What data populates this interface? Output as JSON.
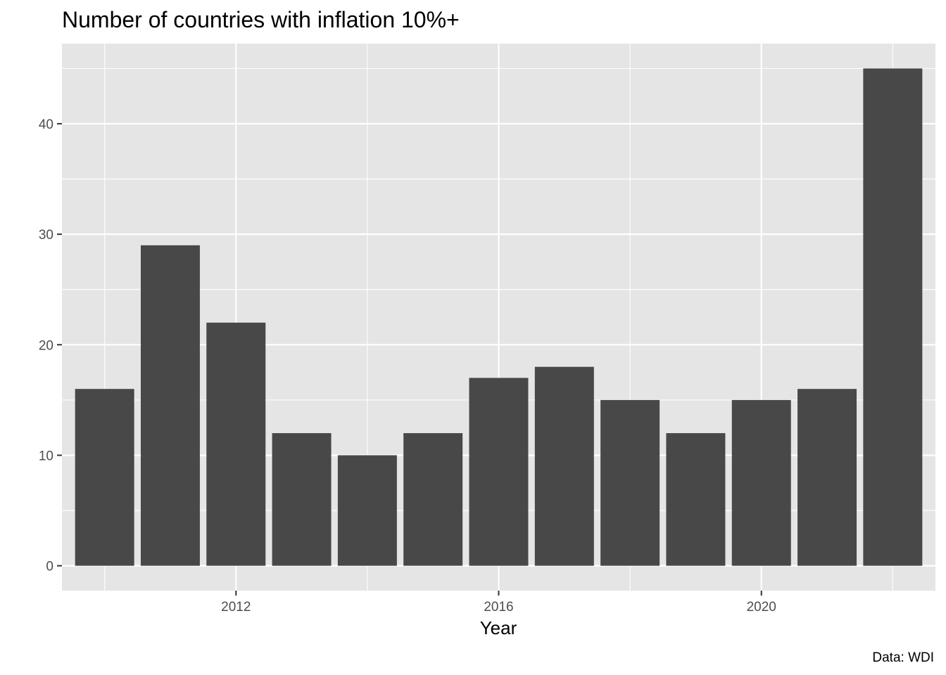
{
  "chart_data": {
    "type": "bar",
    "title": "Number of countries with inflation 10%+",
    "xlabel": "Year",
    "ylabel": "",
    "caption": "Data: WDI",
    "x": [
      2010,
      2011,
      2012,
      2013,
      2014,
      2015,
      2016,
      2017,
      2018,
      2019,
      2020,
      2021,
      2022
    ],
    "values": [
      16,
      29,
      22,
      12,
      10,
      12,
      17,
      18,
      15,
      12,
      15,
      16,
      45
    ],
    "xlim": [
      2009.35,
      2022.65
    ],
    "ylim": [
      -2.25,
      47.25
    ],
    "x_ticks": [
      2012,
      2016,
      2020
    ],
    "x_tick_labels": [
      "2012",
      "2016",
      "2020"
    ],
    "x_minor_ticks": [
      2010,
      2014,
      2018,
      2022
    ],
    "y_ticks": [
      0,
      10,
      20,
      30,
      40
    ],
    "y_tick_labels": [
      "0",
      "10",
      "20",
      "30",
      "40"
    ],
    "y_minor_ticks": [
      5,
      15,
      25,
      35,
      45
    ],
    "bar_width": 0.9,
    "grid": true,
    "colors": {
      "bar": "#484848",
      "panel": "#e5e5e5",
      "grid": "#ffffff",
      "tick": "#333333"
    }
  }
}
